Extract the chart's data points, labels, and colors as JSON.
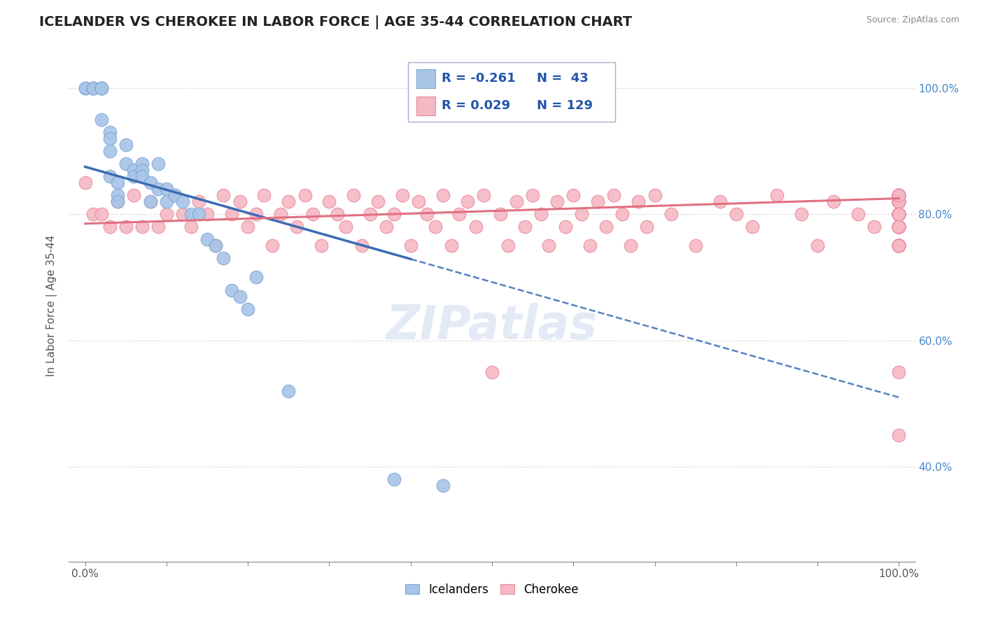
{
  "title": "ICELANDER VS CHEROKEE IN LABOR FORCE | AGE 35-44 CORRELATION CHART",
  "source": "Source: ZipAtlas.com",
  "ylabel": "In Labor Force | Age 35-44",
  "xlim": [
    -0.02,
    1.02
  ],
  "ylim": [
    0.25,
    1.06
  ],
  "x_ticks": [
    0.0,
    0.1,
    0.2,
    0.3,
    0.4,
    0.5,
    0.6,
    0.7,
    0.8,
    0.9,
    1.0
  ],
  "x_tick_labels_show": [
    "0.0%",
    "100.0%"
  ],
  "y_ticks": [
    0.4,
    0.6,
    0.8,
    1.0
  ],
  "y_tick_labels": [
    "40.0%",
    "60.0%",
    "80.0%",
    "100.0%"
  ],
  "watermark": "ZIPatlas",
  "legend_labels": [
    "Icelanders",
    "Cherokee"
  ],
  "icelander_color": "#a8c4e8",
  "icelander_edge_color": "#7aaad4",
  "cherokee_color": "#f5b8c4",
  "cherokee_edge_color": "#e88a9a",
  "icelander_line_color": "#3a6cb5",
  "cherokee_line_color": "#e07080",
  "R_icelander": -0.261,
  "N_icelander": 43,
  "R_cherokee": 0.029,
  "N_cherokee": 129,
  "legend_R_color": "#2255aa",
  "icelander_x": [
    0.0,
    0.0,
    0.01,
    0.01,
    0.01,
    0.02,
    0.02,
    0.02,
    0.02,
    0.03,
    0.03,
    0.03,
    0.03,
    0.04,
    0.04,
    0.04,
    0.05,
    0.05,
    0.06,
    0.06,
    0.07,
    0.07,
    0.07,
    0.08,
    0.08,
    0.09,
    0.09,
    0.1,
    0.1,
    0.11,
    0.12,
    0.13,
    0.14,
    0.15,
    0.16,
    0.17,
    0.18,
    0.19,
    0.2,
    0.21,
    0.25,
    0.38,
    0.44
  ],
  "icelander_y": [
    1.0,
    1.0,
    1.0,
    1.0,
    1.0,
    1.0,
    1.0,
    1.0,
    0.95,
    0.93,
    0.92,
    0.9,
    0.86,
    0.85,
    0.83,
    0.82,
    0.91,
    0.88,
    0.87,
    0.86,
    0.88,
    0.87,
    0.86,
    0.85,
    0.82,
    0.88,
    0.84,
    0.84,
    0.82,
    0.83,
    0.82,
    0.8,
    0.8,
    0.76,
    0.75,
    0.73,
    0.68,
    0.67,
    0.65,
    0.7,
    0.52,
    0.38,
    0.37
  ],
  "cherokee_x": [
    0.0,
    0.01,
    0.02,
    0.03,
    0.04,
    0.05,
    0.06,
    0.07,
    0.08,
    0.09,
    0.1,
    0.11,
    0.12,
    0.13,
    0.14,
    0.15,
    0.16,
    0.17,
    0.18,
    0.19,
    0.2,
    0.21,
    0.22,
    0.23,
    0.24,
    0.25,
    0.26,
    0.27,
    0.28,
    0.29,
    0.3,
    0.31,
    0.32,
    0.33,
    0.34,
    0.35,
    0.36,
    0.37,
    0.38,
    0.39,
    0.4,
    0.41,
    0.42,
    0.43,
    0.44,
    0.45,
    0.46,
    0.47,
    0.48,
    0.49,
    0.5,
    0.51,
    0.52,
    0.53,
    0.54,
    0.55,
    0.56,
    0.57,
    0.58,
    0.59,
    0.6,
    0.61,
    0.62,
    0.63,
    0.64,
    0.65,
    0.66,
    0.67,
    0.68,
    0.69,
    0.7,
    0.72,
    0.75,
    0.78,
    0.8,
    0.82,
    0.85,
    0.88,
    0.9,
    0.92,
    0.95,
    0.97,
    1.0,
    1.0,
    1.0,
    1.0,
    1.0,
    1.0,
    1.0,
    1.0,
    1.0,
    1.0,
    1.0,
    1.0,
    1.0,
    1.0,
    1.0,
    1.0,
    1.0,
    1.0,
    1.0,
    1.0,
    1.0,
    1.0,
    1.0,
    1.0,
    1.0,
    1.0,
    1.0,
    1.0,
    1.0,
    1.0,
    1.0,
    1.0,
    1.0,
    1.0,
    1.0,
    1.0,
    1.0,
    1.0,
    1.0,
    1.0,
    1.0,
    1.0,
    1.0,
    1.0,
    1.0,
    1.0,
    1.0
  ],
  "cherokee_y": [
    0.85,
    0.8,
    0.8,
    0.78,
    0.82,
    0.78,
    0.83,
    0.78,
    0.82,
    0.78,
    0.8,
    0.83,
    0.8,
    0.78,
    0.82,
    0.8,
    0.75,
    0.83,
    0.8,
    0.82,
    0.78,
    0.8,
    0.83,
    0.75,
    0.8,
    0.82,
    0.78,
    0.83,
    0.8,
    0.75,
    0.82,
    0.8,
    0.78,
    0.83,
    0.75,
    0.8,
    0.82,
    0.78,
    0.8,
    0.83,
    0.75,
    0.82,
    0.8,
    0.78,
    0.83,
    0.75,
    0.8,
    0.82,
    0.78,
    0.83,
    0.55,
    0.8,
    0.75,
    0.82,
    0.78,
    0.83,
    0.8,
    0.75,
    0.82,
    0.78,
    0.83,
    0.8,
    0.75,
    0.82,
    0.78,
    0.83,
    0.8,
    0.75,
    0.82,
    0.78,
    0.83,
    0.8,
    0.75,
    0.82,
    0.8,
    0.78,
    0.83,
    0.8,
    0.75,
    0.82,
    0.8,
    0.78,
    0.78,
    0.8,
    0.83,
    0.75,
    0.8,
    0.82,
    0.78,
    0.83,
    0.75,
    0.8,
    0.82,
    0.78,
    0.83,
    0.75,
    0.8,
    0.82,
    0.78,
    0.83,
    0.75,
    0.8,
    0.82,
    0.78,
    0.83,
    0.75,
    0.8,
    0.82,
    0.78,
    0.8,
    0.83,
    0.75,
    0.8,
    0.82,
    0.78,
    0.83,
    0.75,
    0.8,
    0.82,
    0.78,
    0.83,
    0.8,
    0.75,
    0.82,
    0.78,
    0.83,
    0.55,
    0.8,
    0.45
  ],
  "icelander_line_x0": 0.0,
  "icelander_line_x_solid_end": 0.4,
  "icelander_line_x1": 1.0,
  "icelander_line_y0": 0.875,
  "icelander_line_y1": 0.51,
  "cherokee_line_y0": 0.785,
  "cherokee_line_y1": 0.825,
  "background_color": "#ffffff",
  "grid_color": "#cccccc",
  "title_fontsize": 14,
  "tick_fontsize": 11
}
